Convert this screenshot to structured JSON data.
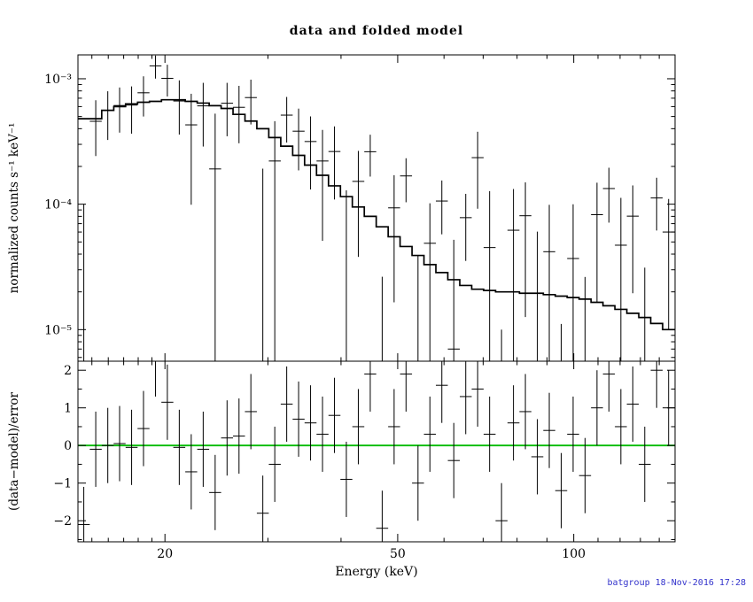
{
  "title": "data and folded model",
  "footer": {
    "text": "batgroup 18-Nov-2016 17:28",
    "color": "#3333cc"
  },
  "chart_data": {
    "type": "scatter",
    "title": "data and folded model",
    "description": "XSPEC-style spectral fit plot: top panel shows BAT count spectrum with error bars and folded model histogram on log-log axes; bottom panel shows (data-model)/error residuals with a green zero line.",
    "x_axis": {
      "label": "Energy (keV)",
      "scale": "log",
      "range": [
        14.2,
        149.0
      ],
      "major_ticks": [
        {
          "value": 20,
          "label": "20"
        },
        {
          "value": 50,
          "label": "50"
        },
        {
          "value": 100,
          "label": "100"
        }
      ],
      "minor_ticks": [
        15,
        16,
        17,
        18,
        19,
        30,
        40,
        60,
        70,
        80,
        90,
        110,
        120,
        130,
        140
      ]
    },
    "bin_edge_factor": 1.0238,
    "energy_kev": [
      14.53,
      15.23,
      15.97,
      16.73,
      17.54,
      18.38,
      19.27,
      20.19,
      21.16,
      22.18,
      23.25,
      24.37,
      25.54,
      26.77,
      28.05,
      29.4,
      30.82,
      32.3,
      33.85,
      35.48,
      37.19,
      38.98,
      40.85,
      42.82,
      44.88,
      47.04,
      49.3,
      51.67,
      54.16,
      56.76,
      59.49,
      62.36,
      65.36,
      68.5,
      71.8,
      75.25,
      78.87,
      82.66,
      86.64,
      90.81,
      95.18,
      99.75,
      104.55,
      109.58,
      114.85,
      120.38,
      126.17,
      132.24,
      138.6,
      145.26
    ],
    "panels": [
      {
        "name": "spectrum",
        "y_label": "normalized counts s⁻¹ keV⁻¹",
        "y_scale": "log",
        "y_range": [
          5.6e-06,
          0.00155
        ],
        "y_major_ticks": [
          {
            "value": 0.001,
            "label": "10⁻³"
          },
          {
            "value": 0.0001,
            "label": "10⁻⁴"
          },
          {
            "value": 1e-05,
            "label": "10⁻⁵"
          }
        ],
        "y_minor_ticks": [
          6e-06,
          7e-06,
          8e-06,
          9e-06,
          2e-05,
          3e-05,
          4e-05,
          5e-05,
          6e-05,
          7e-05,
          8e-05,
          9e-05,
          0.0002,
          0.0003,
          0.0004,
          0.0005,
          0.0006,
          0.0007,
          0.0008,
          0.0009
        ],
        "series": [
          {
            "name": "data",
            "style": "bins-with-errors",
            "color": "#000000",
            "values": [
              -0.000246,
              0.000458,
              0.00056,
              0.000612,
              0.000617,
              0.000773,
              0.001267,
              0.001008,
              0.000665,
              0.000429,
              0.000608,
              0.000191,
              0.000638,
              0.000592,
              0.000708,
              -6.8e-05,
              0.000221,
              0.000513,
              0.000382,
              0.000316,
              0.000221,
              0.000263,
              -9e-06,
              0.000152,
              0.000262,
              -6.6e-06,
              9.35e-05,
              0.000168,
              -1.95e-05,
              4.88e-05,
              0.000106,
              7e-06,
              7.81e-05,
              0.000235,
              4.51e-05,
              0.0,
              6.2e-05,
              8.09e-05,
              2e-06,
              4.18e-05,
              -2.59e-05,
              3.69e-05,
              -1.75e-05,
              8.25e-05,
              0.0001333,
              4.71e-05,
              8.03e-05,
              -6.3e-06,
              0.0001121,
              6e-05
            ],
            "errors": [
              0.000346,
              0.000216,
              0.000235,
              0.00024,
              0.000252,
              0.000273,
              0.000264,
              0.000286,
              0.000306,
              0.00033,
              0.00032,
              0.000336,
              0.00029,
              0.000286,
              0.000276,
              0.00026,
              0.000238,
              0.000203,
              0.000196,
              0.000185,
              0.00017,
              0.000154,
              0.000138,
              0.000114,
              9.6e-05,
              3.3e-05,
              7.7e-05,
              6.44e-05,
              5.85e-05,
              5.28e-05,
              4.85e-05,
              4.5e-05,
              4.28e-05,
              0.000143,
              8.2e-05,
              1e-05,
              7e-05,
              6.83e-05,
              5.85e-05,
              5.7e-05,
              3.7e-05,
              6.3e-05,
              4.38e-05,
              6.6e-05,
              6.2e-05,
              6.53e-05,
              6.08e-05,
              3.75e-05,
              5.04e-05,
              5e-05
            ]
          },
          {
            "name": "folded model",
            "style": "histogram",
            "color": "#000000",
            "values": [
              0.00048,
              0.00048,
              0.00056,
              0.0006,
              0.00063,
              0.00065,
              0.00066,
              0.00068,
              0.00068,
              0.00066,
              0.00064,
              0.00061,
              0.00058,
              0.00052,
              0.00046,
              0.0004,
              0.00034,
              0.00029,
              0.000245,
              0.000205,
              0.00017,
              0.00014,
              0.000115,
              9.5e-05,
              8e-05,
              6.6e-05,
              5.5e-05,
              4.6e-05,
              3.9e-05,
              3.3e-05,
              2.85e-05,
              2.5e-05,
              2.25e-05,
              2.1e-05,
              2.05e-05,
              2e-05,
              2e-05,
              1.95e-05,
              1.95e-05,
              1.9e-05,
              1.85e-05,
              1.8e-05,
              1.75e-05,
              1.65e-05,
              1.55e-05,
              1.45e-05,
              1.35e-05,
              1.25e-05,
              1.12e-05,
              1e-05
            ]
          }
        ]
      },
      {
        "name": "residuals",
        "y_label": "(data−model)/error",
        "y_scale": "linear",
        "y_range": [
          -2.56,
          2.24
        ],
        "y_major_ticks": [
          {
            "value": 2,
            "label": "2"
          },
          {
            "value": 1,
            "label": "1"
          },
          {
            "value": 0,
            "label": "0"
          },
          {
            "value": -1,
            "label": "−1"
          },
          {
            "value": -2,
            "label": "−2"
          }
        ],
        "y_minor_ticks": [
          -2.5,
          -1.5,
          -0.5,
          0.5,
          1.5
        ],
        "series": [
          {
            "name": "(data-model)/error",
            "style": "bins-with-errors",
            "color": "#000000",
            "values": [
              -2.1,
              -0.1,
              0.0,
              0.05,
              -0.05,
              0.45,
              2.3,
              1.15,
              -0.05,
              -0.7,
              -0.1,
              -1.25,
              0.2,
              0.25,
              0.9,
              -1.8,
              -0.5,
              1.1,
              0.7,
              0.6,
              0.3,
              0.8,
              -0.9,
              0.5,
              1.9,
              -2.2,
              0.5,
              1.9,
              -1.0,
              0.3,
              1.6,
              -0.4,
              1.3,
              1.5,
              0.3,
              -2.0,
              0.6,
              0.9,
              -0.3,
              0.4,
              -1.2,
              0.3,
              -0.8,
              1.0,
              1.9,
              0.5,
              1.1,
              -0.5,
              2.0,
              1.0
            ],
            "error": 1
          }
        ],
        "reference_line": {
          "y": 0,
          "color": "#00bb00"
        }
      }
    ]
  }
}
